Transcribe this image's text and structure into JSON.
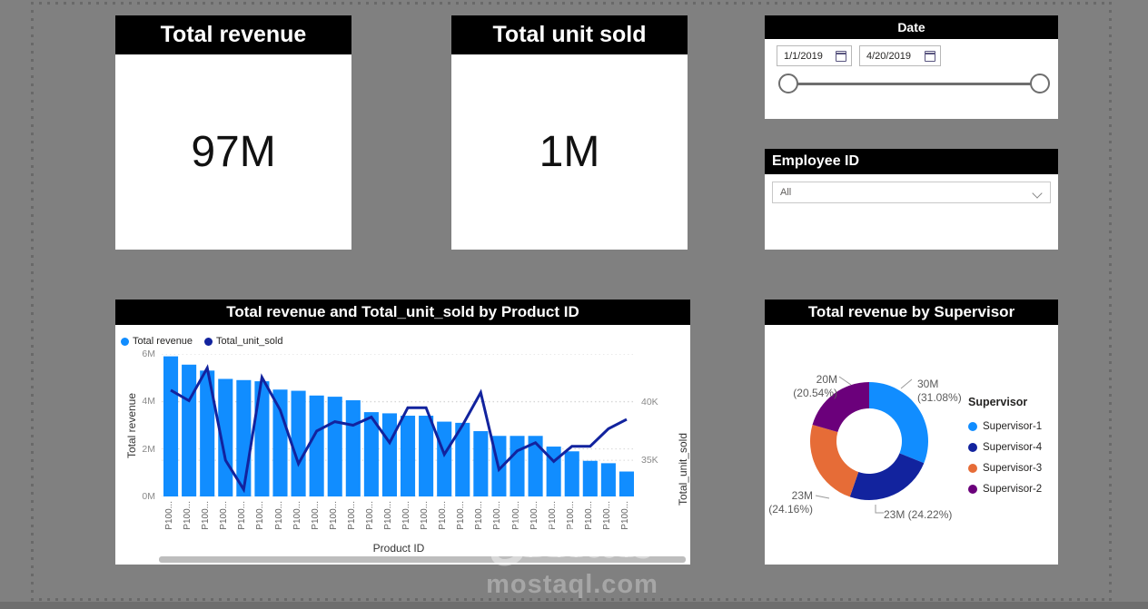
{
  "watermark": {
    "logo_text": "مستقل",
    "site": "mostaql.com"
  },
  "kpi": {
    "revenue": {
      "title": "Total revenue",
      "value": "97M"
    },
    "units": {
      "title": "Total unit sold",
      "value": "1M"
    }
  },
  "date_slicer": {
    "title": "Date",
    "start_date": "1/1/2019",
    "end_date": "4/20/2019"
  },
  "employee_slicer": {
    "title": "Employee ID",
    "selected": "All"
  },
  "chart_data": [
    {
      "type": "combo",
      "title": "Total revenue and Total_unit_sold by Product ID",
      "xlabel": "Product ID",
      "legend_position": "top-left",
      "grid": "dotted",
      "categories": [
        "P100...",
        "P100...",
        "P100...",
        "P100...",
        "P100...",
        "P100...",
        "P100...",
        "P100...",
        "P100...",
        "P100...",
        "P100...",
        "P100...",
        "P100...",
        "P100...",
        "P100...",
        "P100...",
        "P100...",
        "P100...",
        "P100...",
        "P100...",
        "P100...",
        "P100...",
        "P100...",
        "P100...",
        "P100...",
        "P100..."
      ],
      "series": [
        {
          "name": "Total revenue",
          "chart": "bar",
          "axis": "left",
          "color": "#118DFF",
          "values": [
            5.9,
            5.55,
            5.3,
            4.95,
            4.9,
            4.85,
            4.5,
            4.45,
            4.25,
            4.2,
            4.05,
            3.55,
            3.5,
            3.4,
            3.4,
            3.15,
            3.1,
            2.75,
            2.55,
            2.55,
            2.55,
            2.1,
            1.9,
            1.5,
            1.4,
            1.05
          ]
        },
        {
          "name": "Total_unit_sold",
          "chart": "line",
          "axis": "right",
          "color": "#12239E",
          "values": [
            41.0,
            40.1,
            42.9,
            35.0,
            32.5,
            42.1,
            39.3,
            34.7,
            37.5,
            38.3,
            38.0,
            38.7,
            36.5,
            39.5,
            39.5,
            35.5,
            38.0,
            40.8,
            34.2,
            35.8,
            36.5,
            34.9,
            36.2,
            36.2,
            37.7,
            38.5
          ]
        }
      ],
      "left_axis": {
        "title": "Total revenue",
        "unit": "M",
        "min": 0,
        "max": 6,
        "ticks": [
          {
            "label": "0M",
            "value": 0
          },
          {
            "label": "2M",
            "value": 2
          },
          {
            "label": "4M",
            "value": 4
          },
          {
            "label": "6M",
            "value": 6
          }
        ]
      },
      "right_axis": {
        "title": "Total_unit_sold",
        "unit": "K",
        "min": 31.9,
        "max": 44.1,
        "ticks": [
          {
            "label": "35K",
            "value": 35
          },
          {
            "label": "40K",
            "value": 40
          }
        ]
      }
    },
    {
      "type": "donut",
      "title": "Total revenue by Supervisor",
      "legend_title": "Supervisor",
      "slices": [
        {
          "name": "Supervisor-1",
          "value": "30M",
          "pct": 31.08,
          "pct_label": "(31.08%)",
          "color": "#118DFF"
        },
        {
          "name": "Supervisor-4",
          "value": "23M",
          "pct": 24.22,
          "pct_label": "(24.22%)",
          "color": "#12239E"
        },
        {
          "name": "Supervisor-3",
          "value": "23M",
          "pct": 24.16,
          "pct_label": "(24.16%)",
          "color": "#E66C37"
        },
        {
          "name": "Supervisor-2",
          "value": "20M",
          "pct": 20.54,
          "pct_label": "(20.54%)",
          "color": "#6B007B"
        }
      ]
    }
  ]
}
